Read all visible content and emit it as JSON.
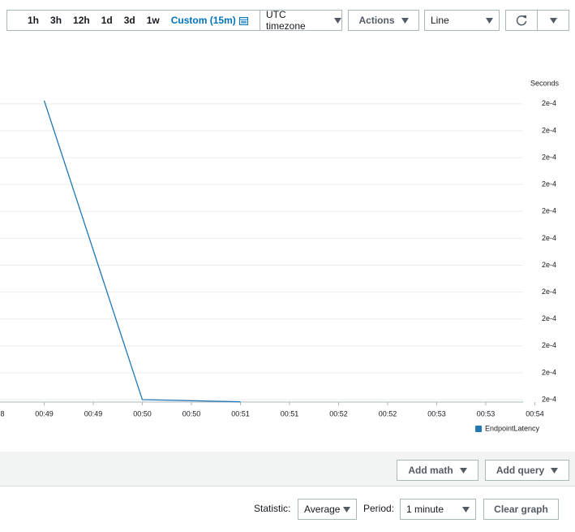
{
  "toolbar": {
    "ranges": [
      "1h",
      "3h",
      "12h",
      "1d",
      "3d",
      "1w"
    ],
    "custom": "Custom (15m)",
    "timezone": "UTC timezone",
    "actions": "Actions",
    "view": "Line"
  },
  "chart_data": {
    "type": "line",
    "y_label": "Seconds",
    "x": [
      49,
      50,
      50.5,
      51
    ],
    "series": [
      {
        "name": "EndpointLatency",
        "color": "#1f77b4",
        "values": [
          0.0002106,
          0.000155,
          0.0001548,
          0.0001546
        ]
      }
    ],
    "xlim": [
      48.5,
      54
    ],
    "xticks": [
      {
        "value": 48.5,
        "label": "8"
      },
      {
        "value": 49,
        "label": "00:49"
      },
      {
        "value": 49.5,
        "label": "00:49"
      },
      {
        "value": 50,
        "label": "00:50"
      },
      {
        "value": 50.5,
        "label": "00:50"
      },
      {
        "value": 51,
        "label": "00:51"
      },
      {
        "value": 51.5,
        "label": "00:51"
      },
      {
        "value": 52,
        "label": "00:52"
      },
      {
        "value": 52.5,
        "label": "00:52"
      },
      {
        "value": 53,
        "label": "00:53"
      },
      {
        "value": 53.5,
        "label": "00:53"
      },
      {
        "value": 54,
        "label": "00:54"
      }
    ],
    "ylim": [
      0.0001544,
      0.000213
    ],
    "yticks": [
      {
        "value": 0.000155,
        "label": "2e-4"
      },
      {
        "value": 0.00016,
        "label": "2e-4"
      },
      {
        "value": 0.000165,
        "label": "2e-4"
      },
      {
        "value": 0.00017,
        "label": "2e-4"
      },
      {
        "value": 0.000175,
        "label": "2e-4"
      },
      {
        "value": 0.00018,
        "label": "2e-4"
      },
      {
        "value": 0.000185,
        "label": "2e-4"
      },
      {
        "value": 0.00019,
        "label": "2e-4"
      },
      {
        "value": 0.000195,
        "label": "2e-4"
      },
      {
        "value": 0.0002,
        "label": "2e-4"
      },
      {
        "value": 0.000205,
        "label": "2e-4"
      },
      {
        "value": 0.00021,
        "label": "2e-4"
      }
    ],
    "grid": true,
    "legend": "bottom-right"
  },
  "query_bar": {
    "add_math": "Add math",
    "add_query": "Add query"
  },
  "footer": {
    "statistic_label": "Statistic:",
    "statistic": "Average",
    "period_label": "Period:",
    "period": "1 minute",
    "clear": "Clear graph"
  }
}
